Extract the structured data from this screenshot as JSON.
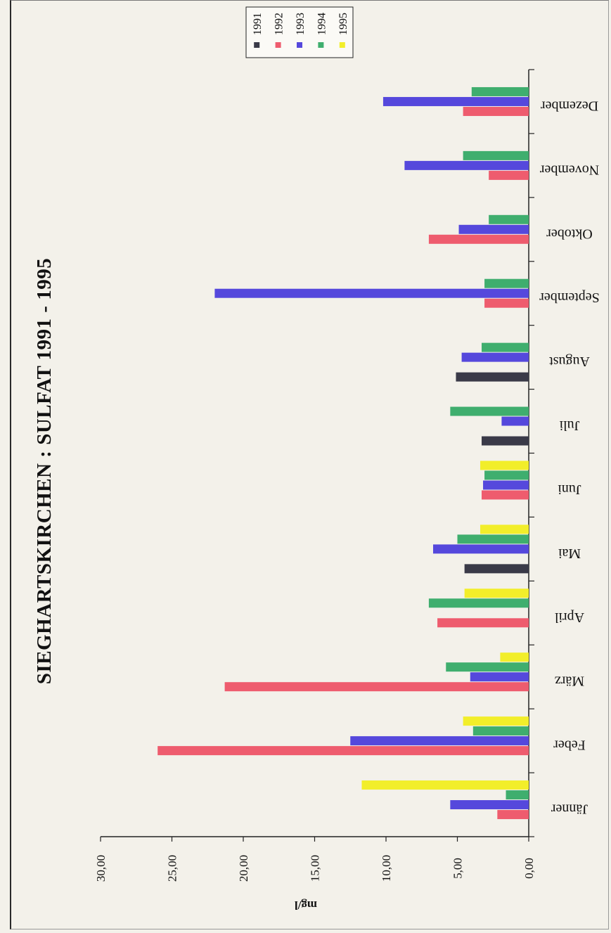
{
  "chart_data": {
    "type": "bar",
    "title": "SIEGHARTSKIRCHEN : SULFAT 1991 - 1995",
    "ylabel": "mg/l",
    "xlabel": "",
    "ylim": [
      0,
      30
    ],
    "y_ticks": [
      "0,00",
      "5,00",
      "10,00",
      "15,00",
      "20,00",
      "25,00",
      "30,00"
    ],
    "grid": false,
    "legend_position": "top",
    "categories": [
      "Jänner",
      "Feber",
      "März",
      "April",
      "Mai",
      "Juni",
      "Juli",
      "August",
      "September",
      "Oktober",
      "November",
      "Dezember"
    ],
    "series": [
      {
        "name": "1991",
        "color": "#3a3a48",
        "values": [
          null,
          null,
          null,
          null,
          4.5,
          null,
          3.3,
          5.1,
          null,
          null,
          null,
          null
        ]
      },
      {
        "name": "1992",
        "color": "#ee5c6e",
        "values": [
          2.2,
          26.0,
          21.3,
          6.4,
          null,
          3.3,
          null,
          null,
          3.1,
          7.0,
          2.8,
          4.6
        ]
      },
      {
        "name": "1993",
        "color": "#5548dc",
        "values": [
          5.5,
          12.5,
          4.1,
          null,
          6.7,
          3.2,
          1.9,
          4.7,
          22.0,
          4.9,
          8.7,
          10.2
        ]
      },
      {
        "name": "1994",
        "color": "#3fae6e",
        "values": [
          1.6,
          3.9,
          5.8,
          7.0,
          5.0,
          3.1,
          5.5,
          3.3,
          3.1,
          2.8,
          4.6,
          4.0
        ]
      },
      {
        "name": "1995",
        "color": "#f2ee2a",
        "values": [
          11.7,
          4.6,
          2.0,
          4.5,
          3.4,
          3.4,
          null,
          null,
          null,
          null,
          null,
          null
        ]
      }
    ]
  }
}
